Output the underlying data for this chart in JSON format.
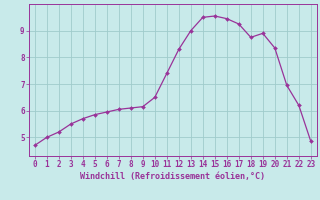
{
  "x": [
    0,
    1,
    2,
    3,
    4,
    5,
    6,
    7,
    8,
    9,
    10,
    11,
    12,
    13,
    14,
    15,
    16,
    17,
    18,
    19,
    20,
    21,
    22,
    23
  ],
  "y": [
    4.7,
    5.0,
    5.2,
    5.5,
    5.7,
    5.85,
    5.95,
    6.05,
    6.1,
    6.15,
    6.5,
    7.4,
    8.3,
    9.0,
    9.5,
    9.55,
    9.45,
    9.25,
    8.75,
    8.9,
    8.35,
    6.95,
    6.2,
    4.85
  ],
  "line_color": "#993399",
  "marker": "D",
  "marker_size": 2.0,
  "background_color": "#c8eaea",
  "grid_color": "#a0cccc",
  "axis_color": "#993399",
  "xlabel": "Windchill (Refroidissement éolien,°C)",
  "xlabel_fontsize": 6.0,
  "tick_fontsize": 5.5,
  "ylim": [
    4.3,
    10.0
  ],
  "xlim": [
    -0.5,
    23.5
  ],
  "yticks": [
    5,
    6,
    7,
    8,
    9
  ],
  "xticks": [
    0,
    1,
    2,
    3,
    4,
    5,
    6,
    7,
    8,
    9,
    10,
    11,
    12,
    13,
    14,
    15,
    16,
    17,
    18,
    19,
    20,
    21,
    22,
    23
  ]
}
